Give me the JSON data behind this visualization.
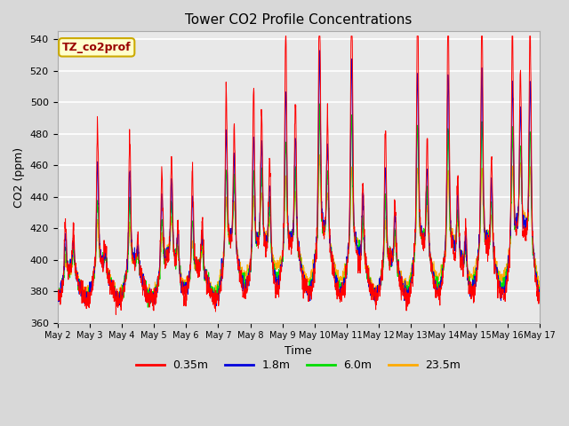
{
  "title": "Tower CO2 Profile Concentrations",
  "xlabel": "Time",
  "ylabel": "CO2 (ppm)",
  "ylim": [
    360,
    545
  ],
  "xlim": [
    0,
    15
  ],
  "legend_label": "TZ_co2prof",
  "series_labels": [
    "0.35m",
    "1.8m",
    "6.0m",
    "23.5m"
  ],
  "series_colors": [
    "#ff0000",
    "#0000dd",
    "#00dd00",
    "#ffaa00"
  ],
  "xtick_labels": [
    "May 2",
    "May 3",
    "May 4",
    "May 5",
    "May 6",
    "May 7",
    "May 8",
    "May 9",
    "May 10",
    "May 11",
    "May 12",
    "May 13",
    "May 14",
    "May 15",
    "May 16",
    "May 17"
  ],
  "ytick_values": [
    360,
    380,
    400,
    420,
    440,
    460,
    480,
    500,
    520,
    540
  ],
  "plot_bg_color": "#e8e8e8",
  "grid_color": "#ffffff",
  "annotation_bg": "#ffffcc",
  "annotation_border": "#ccaa00",
  "annotation_text_color": "#990000"
}
